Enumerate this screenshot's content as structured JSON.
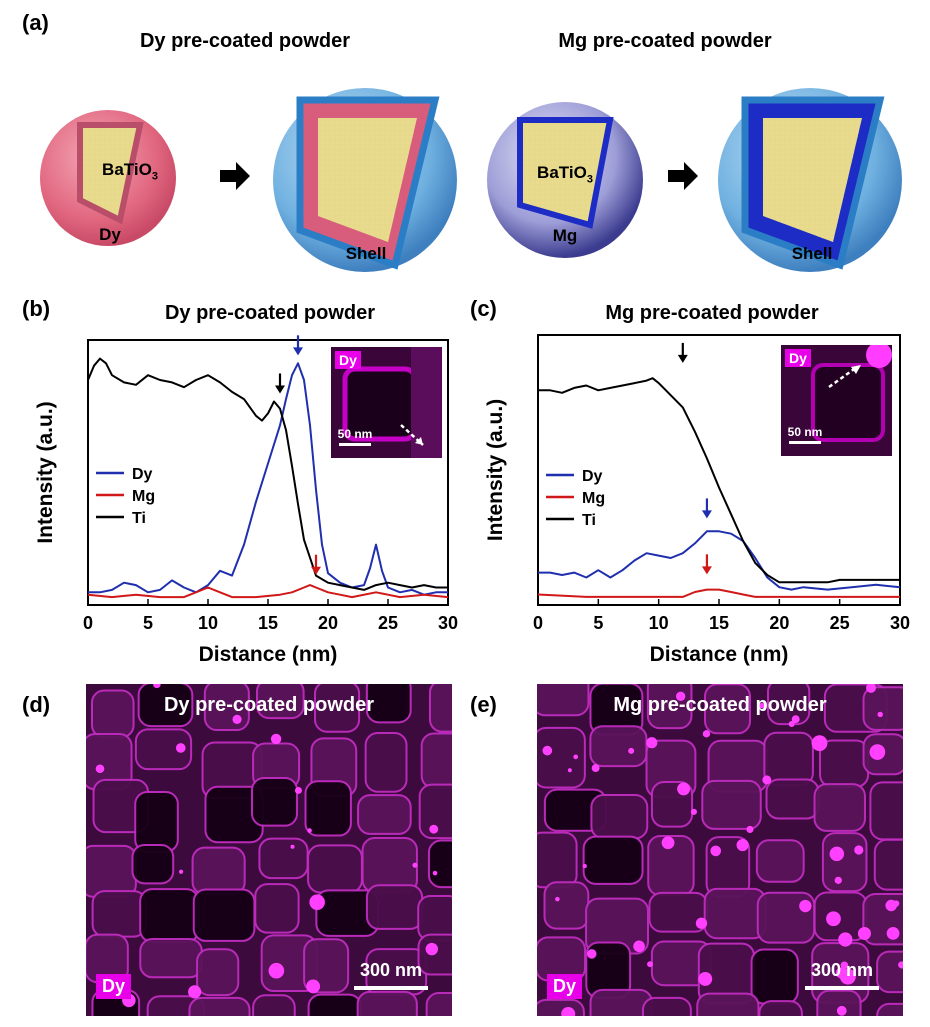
{
  "panel_a": {
    "label": "(a)",
    "title_left": "Dy pre-coated powder",
    "title_right": "Mg pre-coated powder",
    "spheres": [
      {
        "core_label": "BaTiO",
        "core_sub": "3",
        "bottom_label": "Dy",
        "shell_color": "#e1677f"
      },
      {
        "bottom_label": "Shell",
        "shell_color": "#5e9fd6"
      },
      {
        "core_label": "BaTiO",
        "core_sub": "3",
        "bottom_label": "Mg",
        "shell_color": "#3a40c2"
      },
      {
        "bottom_label": "Shell",
        "shell_color": "#5e9fd6"
      }
    ]
  },
  "panel_b": {
    "label": "(b)",
    "title": "Dy pre-coated powder",
    "xlabel": "Distance (nm)",
    "ylabel": "Intensity (a.u.)",
    "inset_tag": "Dy",
    "inset_scale": "50 nm"
  },
  "panel_c": {
    "label": "(c)",
    "title": "Mg pre-coated powder",
    "xlabel": "Distance (nm)",
    "ylabel": "Intensity (a.u.)",
    "inset_tag": "Dy",
    "inset_scale": "50 nm"
  },
  "panel_d": {
    "label": "(d)",
    "title": "Dy pre-coated powder",
    "tag": "Dy",
    "scale": "300 nm"
  },
  "panel_e": {
    "label": "(e)",
    "title": "Mg pre-coated powder",
    "tag": "Dy",
    "scale": "300 nm"
  },
  "colors": {
    "Dy": "#1f2fae",
    "Mg": "#d01818",
    "Ti": "#000000",
    "magenta": "#e800e8"
  },
  "chart_data": [
    {
      "type": "line",
      "title": "Dy pre-coated powder",
      "xlabel": "Distance (nm)",
      "ylabel": "Intensity (a.u.)",
      "xlim": [
        0,
        30
      ],
      "ylim": [
        0,
        1
      ],
      "xticks": [
        0,
        5,
        10,
        15,
        20,
        25,
        30
      ],
      "legend": "middle-left",
      "series": [
        {
          "name": "Dy",
          "x": [
            0,
            1,
            2,
            3,
            4,
            5,
            6,
            7,
            8,
            9,
            10,
            11,
            12,
            13,
            14,
            15,
            16,
            16.5,
            17,
            17.5,
            18,
            18.5,
            19,
            19.5,
            20,
            21,
            22,
            23,
            23.5,
            24,
            24.5,
            25,
            26,
            27,
            28,
            29,
            30
          ],
          "y": [
            0.02,
            0.02,
            0.03,
            0.06,
            0.05,
            0.02,
            0.03,
            0.07,
            0.04,
            0.02,
            0.05,
            0.11,
            0.09,
            0.22,
            0.4,
            0.56,
            0.72,
            0.83,
            0.93,
            0.98,
            0.91,
            0.72,
            0.45,
            0.22,
            0.1,
            0.06,
            0.04,
            0.05,
            0.12,
            0.22,
            0.11,
            0.04,
            0.02,
            0.03,
            0.01,
            0.02,
            0.02
          ]
        },
        {
          "name": "Mg",
          "x": [
            0,
            2,
            4,
            6,
            8,
            9,
            10,
            11,
            12,
            14,
            16,
            17,
            18,
            18.5,
            19,
            20,
            21,
            22,
            24,
            25,
            26,
            28,
            30
          ],
          "y": [
            0.01,
            0.0,
            0.01,
            0.0,
            0.0,
            0.02,
            0.04,
            0.02,
            0.0,
            0.0,
            0.01,
            0.02,
            0.04,
            0.05,
            0.04,
            0.02,
            0.01,
            0.0,
            0.02,
            0.01,
            0.0,
            0.01,
            0.0
          ]
        },
        {
          "name": "Ti",
          "x": [
            0,
            0.5,
            1,
            1.5,
            2,
            3,
            4,
            5,
            6,
            7,
            8,
            9,
            10,
            11,
            12,
            13,
            14,
            14.5,
            15,
            15.5,
            16,
            16.5,
            17,
            17.5,
            18,
            19,
            20,
            21,
            22,
            23,
            24,
            25,
            26,
            27,
            28,
            29,
            30
          ],
          "y": [
            0.91,
            0.97,
            1.0,
            0.98,
            0.93,
            0.9,
            0.89,
            0.93,
            0.91,
            0.9,
            0.88,
            0.91,
            0.93,
            0.9,
            0.86,
            0.83,
            0.76,
            0.74,
            0.77,
            0.82,
            0.79,
            0.7,
            0.55,
            0.39,
            0.24,
            0.09,
            0.06,
            0.05,
            0.04,
            0.03,
            0.05,
            0.06,
            0.05,
            0.04,
            0.05,
            0.04,
            0.04
          ]
        }
      ]
    },
    {
      "type": "line",
      "title": "Mg pre-coated powder",
      "xlabel": "Distance (nm)",
      "ylabel": "Intensity (a.u.)",
      "xlim": [
        0,
        30
      ],
      "ylim": [
        0,
        1
      ],
      "xticks": [
        0,
        5,
        10,
        15,
        20,
        25,
        30
      ],
      "legend": "middle-left",
      "series": [
        {
          "name": "Dy",
          "x": [
            0,
            1,
            2,
            3,
            4,
            5,
            6,
            7,
            8,
            9,
            10,
            11,
            12,
            13,
            14,
            15,
            16,
            17,
            18,
            19,
            20,
            21,
            22,
            24,
            26,
            28,
            30
          ],
          "y": [
            0.1,
            0.1,
            0.09,
            0.1,
            0.08,
            0.11,
            0.08,
            0.11,
            0.15,
            0.18,
            0.17,
            0.16,
            0.18,
            0.22,
            0.27,
            0.27,
            0.26,
            0.23,
            0.16,
            0.08,
            0.04,
            0.03,
            0.04,
            0.03,
            0.04,
            0.05,
            0.04
          ]
        },
        {
          "name": "Mg",
          "x": [
            0,
            4,
            8,
            10,
            12,
            13,
            14,
            15,
            16,
            17,
            18,
            20,
            24,
            30
          ],
          "y": [
            0.01,
            0.0,
            0.0,
            0.0,
            0.0,
            0.02,
            0.03,
            0.03,
            0.02,
            0.01,
            0.0,
            0.0,
            0.0,
            0.0
          ]
        },
        {
          "name": "Ti",
          "x": [
            0,
            1,
            2,
            3,
            4,
            5,
            6,
            7,
            8,
            9,
            9.5,
            10,
            11,
            12,
            13,
            14,
            15,
            16,
            17,
            18,
            19,
            20,
            21,
            22,
            23,
            24,
            25,
            26,
            27,
            28,
            29,
            30
          ],
          "y": [
            0.85,
            0.85,
            0.84,
            0.86,
            0.87,
            0.85,
            0.86,
            0.87,
            0.88,
            0.89,
            0.9,
            0.88,
            0.83,
            0.78,
            0.68,
            0.57,
            0.45,
            0.34,
            0.23,
            0.14,
            0.09,
            0.06,
            0.06,
            0.06,
            0.06,
            0.06,
            0.07,
            0.07,
            0.07,
            0.07,
            0.07,
            0.07
          ]
        }
      ]
    }
  ]
}
